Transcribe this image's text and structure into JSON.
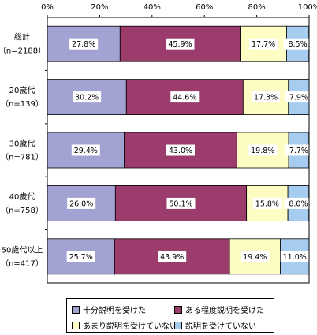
{
  "chart_data": {
    "type": "bar",
    "orientation": "horizontal",
    "stacked": true,
    "percent_stacked": true,
    "xlim": [
      0,
      100
    ],
    "x_ticks": [
      "0%",
      "20%",
      "40%",
      "60%",
      "80%",
      "100%"
    ],
    "categories": [
      {
        "label": "総計",
        "n": "（n=2188）"
      },
      {
        "label": "20歳代",
        "n": "（n=139）"
      },
      {
        "label": "30歳代",
        "n": "（n=781）"
      },
      {
        "label": "40歳代",
        "n": "（n=758）"
      },
      {
        "label": "50歳代以上",
        "n": "（n=417）"
      }
    ],
    "series": [
      {
        "name": "十分説明を受けた",
        "color": "#a3a3d3",
        "values": [
          27.8,
          30.2,
          29.4,
          26.0,
          25.7
        ],
        "labels": [
          "27.8%",
          "30.2%",
          "29.4%",
          "26.0%",
          "25.7%"
        ]
      },
      {
        "name": "ある程度説明を受けた",
        "color": "#9b3c6c",
        "values": [
          45.9,
          44.6,
          43.0,
          50.1,
          43.9
        ],
        "labels": [
          "45.9%",
          "44.6%",
          "43.0%",
          "50.1%",
          "43.9%"
        ]
      },
      {
        "name": "あまり説明を受けていない",
        "color": "#fdfdc3",
        "values": [
          17.7,
          17.3,
          19.8,
          15.8,
          19.4
        ],
        "labels": [
          "17.7%",
          "17.3%",
          "19.8%",
          "15.8%",
          "19.4%"
        ]
      },
      {
        "name": "説明を受けていない",
        "color": "#a6cdf0",
        "values": [
          8.5,
          7.9,
          7.7,
          8.0,
          11.0
        ],
        "labels": [
          "8.5%",
          "7.9%",
          "7.7%",
          "8.0%",
          "11.0%"
        ]
      }
    ],
    "grid": false,
    "legend_position": "bottom"
  }
}
